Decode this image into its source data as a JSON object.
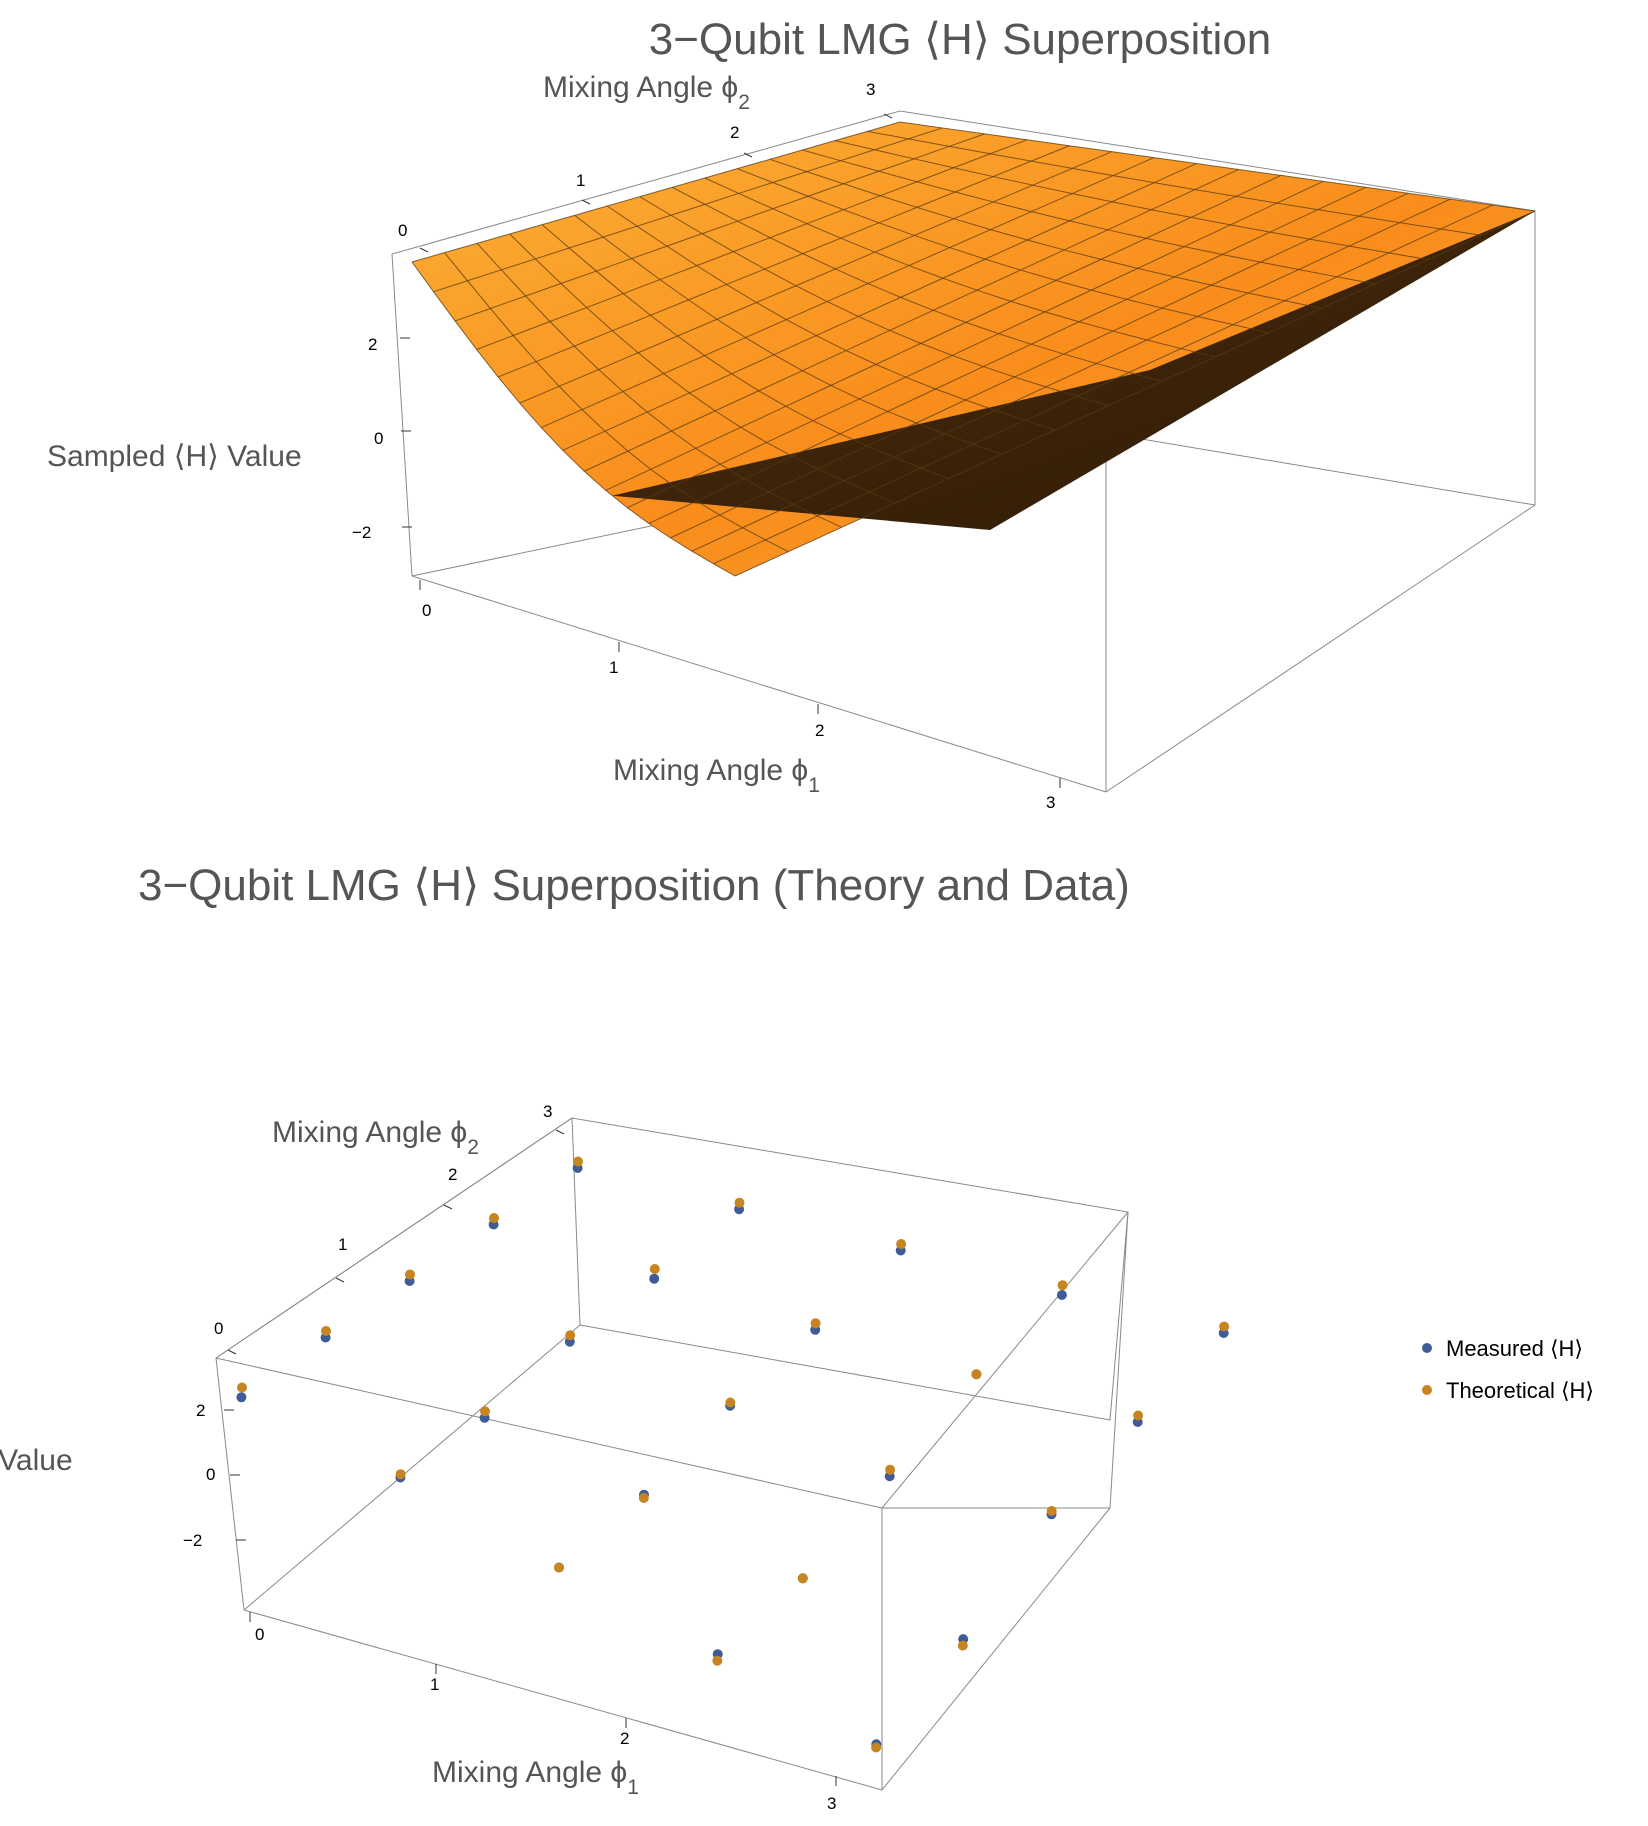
{
  "chart_data": [
    {
      "type": "surface",
      "title": "3−Qubit LMG ⟨H⟩ Superposition",
      "xlabel": "Mixing Angle ϕ",
      "xlabel_sub": "1",
      "ylabel": "Mixing Angle ϕ",
      "ylabel_sub": "2",
      "zlabel": "Sampled ⟨H⟩ Value",
      "xlim": [
        0,
        3.1416
      ],
      "ylim": [
        0,
        3.1416
      ],
      "zlim": [
        -3.3,
        3.3
      ],
      "x_ticks": [
        "0",
        "1",
        "2",
        "3"
      ],
      "y_ticks": [
        "0",
        "1",
        "2",
        "3"
      ],
      "z_ticks": [
        "−2",
        "0",
        "2"
      ],
      "surface_color": "#f7a22b",
      "grid_lines": 15,
      "corner_values": {
        "x0_y0": 3.0,
        "x0_y3": 3.0,
        "x3_y0": -3.0,
        "x3_y3": 3.0
      }
    },
    {
      "type": "scatter3d",
      "title": "3−Qubit LMG ⟨H⟩ Superposition (Theory and Data)",
      "xlabel": "Mixing Angle ϕ",
      "xlabel_sub": "1",
      "ylabel": "Mixing Angle ϕ",
      "ylabel_sub": "2",
      "zlabel": "Sampled ⟨H⟩ Value",
      "x_ticks": [
        "0",
        "1",
        "2",
        "3"
      ],
      "y_ticks": [
        "0",
        "1",
        "2",
        "3"
      ],
      "z_ticks": [
        "−2",
        "0",
        "2"
      ],
      "legend_position": "right",
      "series": [
        {
          "name": "Measured ⟨H⟩",
          "color": "#3e5d96",
          "points": [
            [
              0,
              0,
              2.7
            ],
            [
              0,
              0.785,
              2.8
            ],
            [
              0,
              1.571,
              2.8
            ],
            [
              0,
              2.356,
              2.8
            ],
            [
              0,
              3.142,
              2.8
            ],
            [
              0.785,
              0,
              1.5
            ],
            [
              0.785,
              0.785,
              1.6
            ],
            [
              0.785,
              1.571,
              2.2
            ],
            [
              0.785,
              2.356,
              2.4
            ],
            [
              0.785,
              3.142,
              2.8
            ],
            [
              1.571,
              0,
              0.0
            ],
            [
              1.571,
              0.785,
              0.5
            ],
            [
              1.571,
              1.571,
              1.5
            ],
            [
              1.571,
              2.356,
              2.1
            ],
            [
              1.571,
              3.142,
              2.8
            ],
            [
              2.356,
              0,
              -1.4
            ],
            [
              2.356,
              0.785,
              -0.8
            ],
            [
              2.356,
              1.571,
              0.6
            ],
            [
              2.356,
              2.356,
              2.0
            ],
            [
              2.356,
              3.142,
              2.7
            ],
            [
              3.142,
              0,
              -2.9
            ],
            [
              3.142,
              0.785,
              -1.4
            ],
            [
              3.142,
              1.571,
              0.7
            ],
            [
              3.142,
              2.356,
              1.8
            ],
            [
              3.142,
              3.142,
              2.8
            ]
          ]
        },
        {
          "name": "Theoretical ⟨H⟩",
          "color": "#c78521",
          "points": [
            [
              0,
              0,
              3.0
            ],
            [
              0,
              0.785,
              3.0
            ],
            [
              0,
              1.571,
              3.0
            ],
            [
              0,
              2.356,
              3.0
            ],
            [
              0,
              3.142,
              3.0
            ],
            [
              0.785,
              0,
              1.6
            ],
            [
              0.785,
              0.785,
              1.8
            ],
            [
              0.785,
              1.571,
              2.4
            ],
            [
              0.785,
              2.356,
              2.7
            ],
            [
              0.785,
              3.142,
              3.0
            ],
            [
              1.571,
              0,
              0.0
            ],
            [
              1.571,
              0.785,
              0.4
            ],
            [
              1.571,
              1.571,
              1.6
            ],
            [
              1.571,
              2.356,
              2.3
            ],
            [
              1.571,
              3.142,
              3.0
            ],
            [
              2.356,
              0,
              -1.6
            ],
            [
              2.356,
              0.785,
              -0.8
            ],
            [
              2.356,
              1.571,
              0.8
            ],
            [
              2.356,
              2.356,
              2.0
            ],
            [
              2.356,
              3.142,
              3.0
            ],
            [
              3.142,
              0,
              -3.0
            ],
            [
              3.142,
              0.785,
              -1.6
            ],
            [
              3.142,
              1.571,
              0.8
            ],
            [
              3.142,
              2.356,
              2.0
            ],
            [
              3.142,
              3.142,
              3.0
            ]
          ]
        }
      ]
    }
  ]
}
